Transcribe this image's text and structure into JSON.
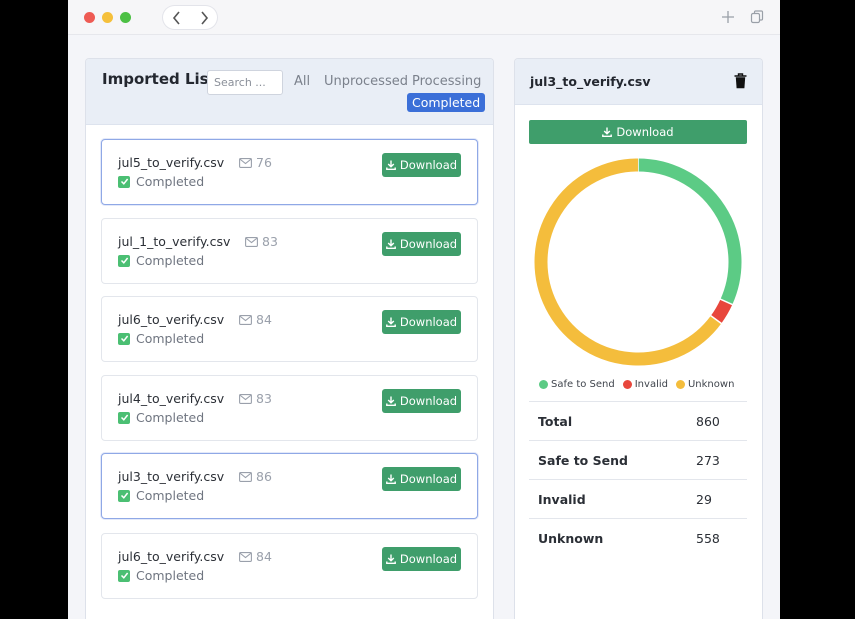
{
  "browser": {
    "traffic_lights": {
      "close": "#ee5b54",
      "minimize": "#f5c03b",
      "maximize": "#4cc044"
    },
    "icons": [
      "chevron-left-icon",
      "chevron-right-icon",
      "plus-icon",
      "copy-icon"
    ]
  },
  "imported_list": {
    "title": "Imported List",
    "search_placeholder": "Search ...",
    "filters": [
      {
        "label": "All",
        "active": false
      },
      {
        "label": "Unprocessed",
        "active": false
      },
      {
        "label": "Processing",
        "active": false
      },
      {
        "label": "Completed",
        "active": true
      }
    ],
    "download_label": "Download",
    "files": [
      {
        "name": "jul5_to_verify.csv",
        "count": "76",
        "status": "Completed",
        "selected": true
      },
      {
        "name": "jul_1_to_verify.csv",
        "count": "83",
        "status": "Completed",
        "selected": false
      },
      {
        "name": "jul6_to_verify.csv",
        "count": "84",
        "status": "Completed",
        "selected": false
      },
      {
        "name": "jul4_to_verify.csv",
        "count": "83",
        "status": "Completed",
        "selected": false
      },
      {
        "name": "jul3_to_verify.csv",
        "count": "86",
        "status": "Completed",
        "selected": true
      },
      {
        "name": "jul6_to_verify.csv",
        "count": "84",
        "status": "Completed",
        "selected": false
      }
    ]
  },
  "detail": {
    "file_name": "jul3_to_verify.csv",
    "download_label": "Download",
    "chart_data": {
      "type": "pie",
      "categories": [
        "Safe to Send",
        "Invalid",
        "Unknown"
      ],
      "values": [
        273,
        29,
        558
      ],
      "colors": [
        "#5ccb85",
        "#e8473c",
        "#f4bd3c"
      ],
      "legend_position": "bottom"
    },
    "stats": [
      {
        "label": "Total",
        "value": "860"
      },
      {
        "label": "Safe to Send",
        "value": "273"
      },
      {
        "label": "Invalid",
        "value": "29"
      },
      {
        "label": "Unknown",
        "value": "558"
      }
    ]
  },
  "colors": {
    "accent": "#3b6fd8",
    "download": "#3f9e6b",
    "check": "#4bbf73"
  }
}
